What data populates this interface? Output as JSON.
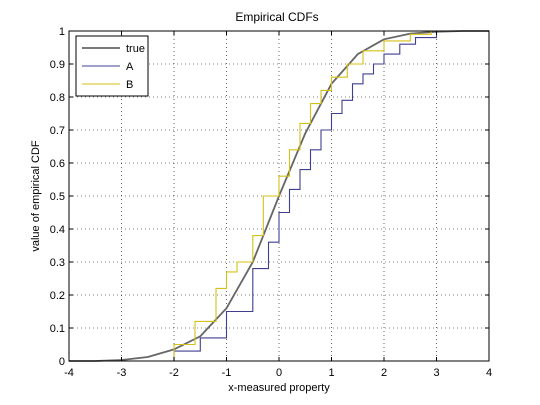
{
  "chart_data": {
    "type": "line",
    "title": "Empirical CDFs",
    "xlabel": "x-measured property",
    "ylabel": "value of empirical CDF",
    "xlim": [
      -4,
      4
    ],
    "ylim": [
      0,
      1
    ],
    "x_ticks": [
      -4,
      -3,
      -2,
      -1,
      0,
      1,
      2,
      3,
      4
    ],
    "y_ticks": [
      0,
      0.1,
      0.2,
      0.3,
      0.4,
      0.5,
      0.6,
      0.7,
      0.8,
      0.9,
      1
    ],
    "x_tick_labels": [
      "-4",
      "-3",
      "-2",
      "-1",
      "0",
      "1",
      "2",
      "3",
      "4"
    ],
    "y_tick_labels": [
      "0",
      "0.1",
      "0.2",
      "0.3",
      "0.4",
      "0.5",
      "0.6",
      "0.7",
      "0.8",
      "0.9",
      "1"
    ],
    "grid": true,
    "legend_position": "top-left",
    "series": [
      {
        "name": "true",
        "color": "#666666",
        "step": false,
        "x": [
          -3.7,
          -3.5,
          -3.0,
          -2.5,
          -2.0,
          -1.5,
          -1.0,
          -0.5,
          0.0,
          0.5,
          1.0,
          1.5,
          2.0,
          2.5,
          3.0,
          3.5,
          4.0
        ],
        "y": [
          0.0,
          0.0,
          0.003,
          0.012,
          0.035,
          0.075,
          0.16,
          0.3,
          0.5,
          0.69,
          0.84,
          0.93,
          0.975,
          0.992,
          0.998,
          1.0,
          1.0
        ]
      },
      {
        "name": "A",
        "color": "#3f3f8f",
        "step": true,
        "x": [
          -2.4,
          -2.0,
          -1.5,
          -1.0,
          -0.5,
          -0.2,
          0.0,
          0.2,
          0.4,
          0.6,
          0.8,
          1.0,
          1.2,
          1.4,
          1.6,
          1.8,
          2.0,
          2.3,
          2.6,
          3.0
        ],
        "y": [
          0.0,
          0.03,
          0.07,
          0.15,
          0.28,
          0.36,
          0.45,
          0.52,
          0.58,
          0.64,
          0.7,
          0.75,
          0.79,
          0.84,
          0.87,
          0.9,
          0.93,
          0.96,
          0.98,
          1.0
        ]
      },
      {
        "name": "B",
        "color": "#d4c017",
        "step": true,
        "x": [
          -2.3,
          -2.0,
          -1.6,
          -1.2,
          -1.0,
          -0.8,
          -0.5,
          -0.3,
          0.0,
          0.2,
          0.4,
          0.6,
          0.8,
          1.0,
          1.3,
          1.6,
          2.0,
          2.5,
          2.9
        ],
        "y": [
          0.0,
          0.05,
          0.12,
          0.22,
          0.27,
          0.3,
          0.38,
          0.5,
          0.56,
          0.64,
          0.72,
          0.78,
          0.82,
          0.86,
          0.9,
          0.94,
          0.97,
          0.99,
          1.0
        ]
      }
    ]
  }
}
